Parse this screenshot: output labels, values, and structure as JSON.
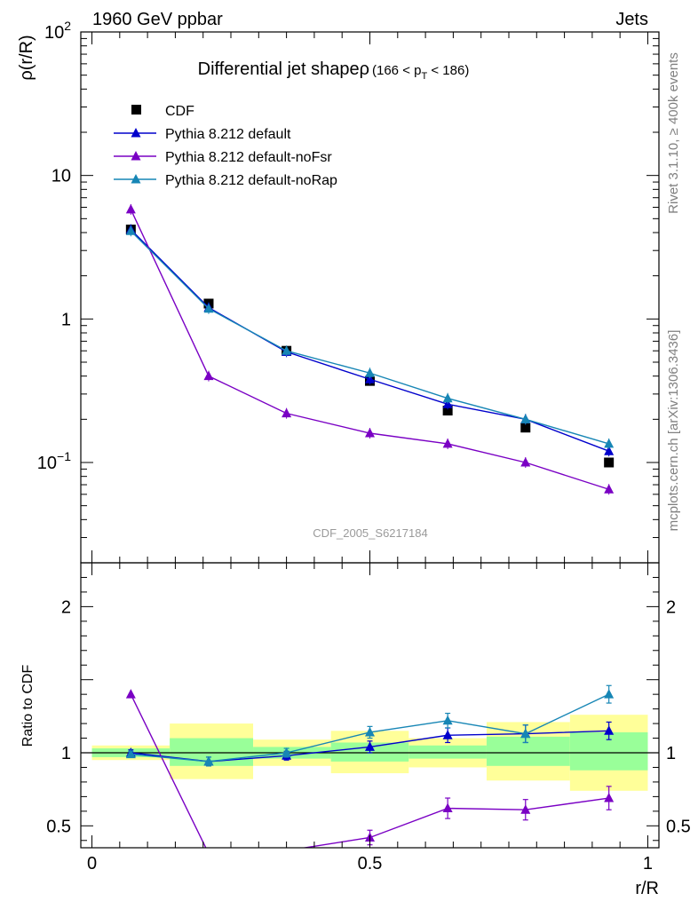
{
  "header": {
    "left": "1960 GeV ppbar",
    "right": "Jets"
  },
  "side_labels": {
    "rivet": "Rivet 3.1.10, ≥ 400k events",
    "source": "mcplots.cern.ch [arXiv:1306.3436]"
  },
  "chart_data": [
    {
      "type": "line",
      "scale": "log",
      "title": "Differential jet shapeρ",
      "title_suffix": "(166 < p",
      "title_sub": "T",
      "title_suffix2": " < 186)",
      "ylabel": "ρ(r/R)",
      "xlabel": "",
      "watermark": "CDF_2005_S6217184",
      "xlim": [
        -0.02,
        1.02
      ],
      "ylim": [
        0.02,
        100
      ],
      "y_ticks": [
        {
          "value": 100,
          "label": "10",
          "sup": "2"
        },
        {
          "value": 10,
          "label": "10",
          "sup": ""
        },
        {
          "value": 1,
          "label": "1",
          "sup": ""
        },
        {
          "value": 0.1,
          "label": "10",
          "sup": "−1"
        }
      ],
      "x": [
        0.07,
        0.21,
        0.35,
        0.5,
        0.64,
        0.78,
        0.93
      ],
      "series": [
        {
          "name": "CDF",
          "color": "#000000",
          "marker": "square",
          "values": [
            4.2,
            1.28,
            0.6,
            0.37,
            0.23,
            0.175,
            0.1
          ]
        },
        {
          "name": "Pythia 8.212 default",
          "color": "#0000cc",
          "marker": "triangle",
          "values": [
            4.2,
            1.2,
            0.59,
            0.38,
            0.255,
            0.2,
            0.12
          ]
        },
        {
          "name": "Pythia 8.212 default-noFsr",
          "color": "#7a00c4",
          "marker": "triangle",
          "values": [
            5.8,
            0.4,
            0.22,
            0.16,
            0.135,
            0.1,
            0.065
          ]
        },
        {
          "name": "Pythia 8.212 default-noRap",
          "color": "#1786b5",
          "marker": "triangle",
          "values": [
            4.1,
            1.18,
            0.6,
            0.42,
            0.28,
            0.2,
            0.135
          ]
        }
      ],
      "legend_position": "top-left"
    },
    {
      "type": "line",
      "ylabel": "Ratio to CDF",
      "xlabel": "r/R",
      "xlim": [
        -0.02,
        1.02
      ],
      "ylim": [
        0.35,
        2.3
      ],
      "x_ticks": [
        {
          "value": 0,
          "label": "0"
        },
        {
          "value": 0.5,
          "label": "0.5"
        },
        {
          "value": 1,
          "label": "1"
        }
      ],
      "y_ticks": [
        {
          "value": 0.5,
          "label": "0.5"
        },
        {
          "value": 1,
          "label": "1"
        },
        {
          "value": 2,
          "label": "2"
        }
      ],
      "bands": [
        {
          "x0": 0.0,
          "x1": 0.14,
          "y1_lo": 0.97,
          "y1_hi": 1.03,
          "y2_lo": 0.95,
          "y2_hi": 1.05
        },
        {
          "x0": 0.14,
          "x1": 0.29,
          "y1_lo": 0.91,
          "y1_hi": 1.1,
          "y2_lo": 0.82,
          "y2_hi": 1.2
        },
        {
          "x0": 0.29,
          "x1": 0.43,
          "y1_lo": 0.96,
          "y1_hi": 1.04,
          "y2_lo": 0.91,
          "y2_hi": 1.09
        },
        {
          "x0": 0.43,
          "x1": 0.57,
          "y1_lo": 0.94,
          "y1_hi": 1.07,
          "y2_lo": 0.86,
          "y2_hi": 1.15
        },
        {
          "x0": 0.57,
          "x1": 0.71,
          "y1_lo": 0.96,
          "y1_hi": 1.05,
          "y2_lo": 0.9,
          "y2_hi": 1.1
        },
        {
          "x0": 0.71,
          "x1": 0.86,
          "y1_lo": 0.91,
          "y1_hi": 1.11,
          "y2_lo": 0.81,
          "y2_hi": 1.21
        },
        {
          "x0": 0.86,
          "x1": 1.0,
          "y1_lo": 0.88,
          "y1_hi": 1.14,
          "y2_lo": 0.74,
          "y2_hi": 1.26
        }
      ],
      "x": [
        0.07,
        0.21,
        0.35,
        0.5,
        0.64,
        0.78,
        0.93
      ],
      "series": [
        {
          "name": "Pythia 8.212 default",
          "color": "#0000cc",
          "values": [
            1.0,
            0.94,
            0.98,
            1.04,
            1.12,
            1.13,
            1.15
          ],
          "errors": [
            0.02,
            0.03,
            0.03,
            0.04,
            0.05,
            0.06,
            0.06
          ]
        },
        {
          "name": "Pythia 8.212 default-noFsr",
          "color": "#7a00c4",
          "values": [
            1.4,
            0.31,
            0.33,
            0.42,
            0.62,
            0.61,
            0.69
          ],
          "errors": [
            0.0,
            0.0,
            0.0,
            0.05,
            0.07,
            0.07,
            0.08
          ]
        },
        {
          "name": "Pythia 8.212 default-noRap",
          "color": "#1786b5",
          "values": [
            0.99,
            0.94,
            1.0,
            1.14,
            1.22,
            1.13,
            1.4
          ],
          "errors": [
            0.02,
            0.03,
            0.03,
            0.04,
            0.05,
            0.06,
            0.06
          ]
        }
      ]
    }
  ]
}
